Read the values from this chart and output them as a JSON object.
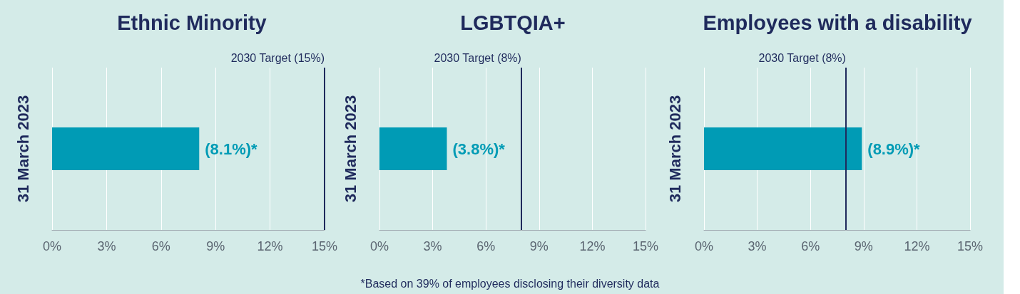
{
  "chart_data": [
    {
      "type": "bar",
      "orientation": "horizontal",
      "title": "Ethnic Minority",
      "categories": [
        "31 March 2023"
      ],
      "values": [
        8.1
      ],
      "color": "#009bb5",
      "value_labels": [
        "(8.1%)*"
      ],
      "xlim": [
        0,
        15
      ],
      "xticks": [
        {
          "value": 0,
          "label": "0%"
        },
        {
          "value": 3,
          "label": "3%"
        },
        {
          "value": 6,
          "label": "6%"
        },
        {
          "value": 9,
          "label": "9%"
        },
        {
          "value": 12,
          "label": "12%"
        },
        {
          "value": 15,
          "label": "15%"
        }
      ],
      "grid": "x",
      "ref_lines": [
        {
          "axis": "x",
          "value": 15,
          "label": "2030 Target (15%)",
          "color": "#1f2a5c"
        }
      ]
    },
    {
      "type": "bar",
      "orientation": "horizontal",
      "title": "LGBTQIA+",
      "categories": [
        "31 March 2023"
      ],
      "values": [
        3.8
      ],
      "color": "#009bb5",
      "value_labels": [
        "(3.8%)*"
      ],
      "xlim": [
        0,
        15
      ],
      "xticks": [
        {
          "value": 0,
          "label": "0%"
        },
        {
          "value": 3,
          "label": "3%"
        },
        {
          "value": 6,
          "label": "6%"
        },
        {
          "value": 9,
          "label": "9%"
        },
        {
          "value": 12,
          "label": "12%"
        },
        {
          "value": 15,
          "label": "15%"
        }
      ],
      "grid": "x",
      "ref_lines": [
        {
          "axis": "x",
          "value": 8,
          "label": "2030 Target (8%)",
          "color": "#1f2a5c"
        }
      ],
      "annotations": [
        "*Based on 39% of employees disclosing their diversity data"
      ]
    },
    {
      "type": "bar",
      "orientation": "horizontal",
      "title": "Employees with a disability",
      "categories": [
        "31 March 2023"
      ],
      "values": [
        8.9
      ],
      "color": "#009bb5",
      "value_labels": [
        "(8.9%)*"
      ],
      "xlim": [
        0,
        15
      ],
      "xticks": [
        {
          "value": 0,
          "label": "0%"
        },
        {
          "value": 3,
          "label": "3%"
        },
        {
          "value": 6,
          "label": "6%"
        },
        {
          "value": 9,
          "label": "9%"
        },
        {
          "value": 12,
          "label": "12%"
        },
        {
          "value": 15,
          "label": "15%"
        }
      ],
      "grid": "x",
      "ref_lines": [
        {
          "axis": "x",
          "value": 8,
          "label": "2030 Target (8%)",
          "color": "#1f2a5c"
        }
      ]
    }
  ]
}
